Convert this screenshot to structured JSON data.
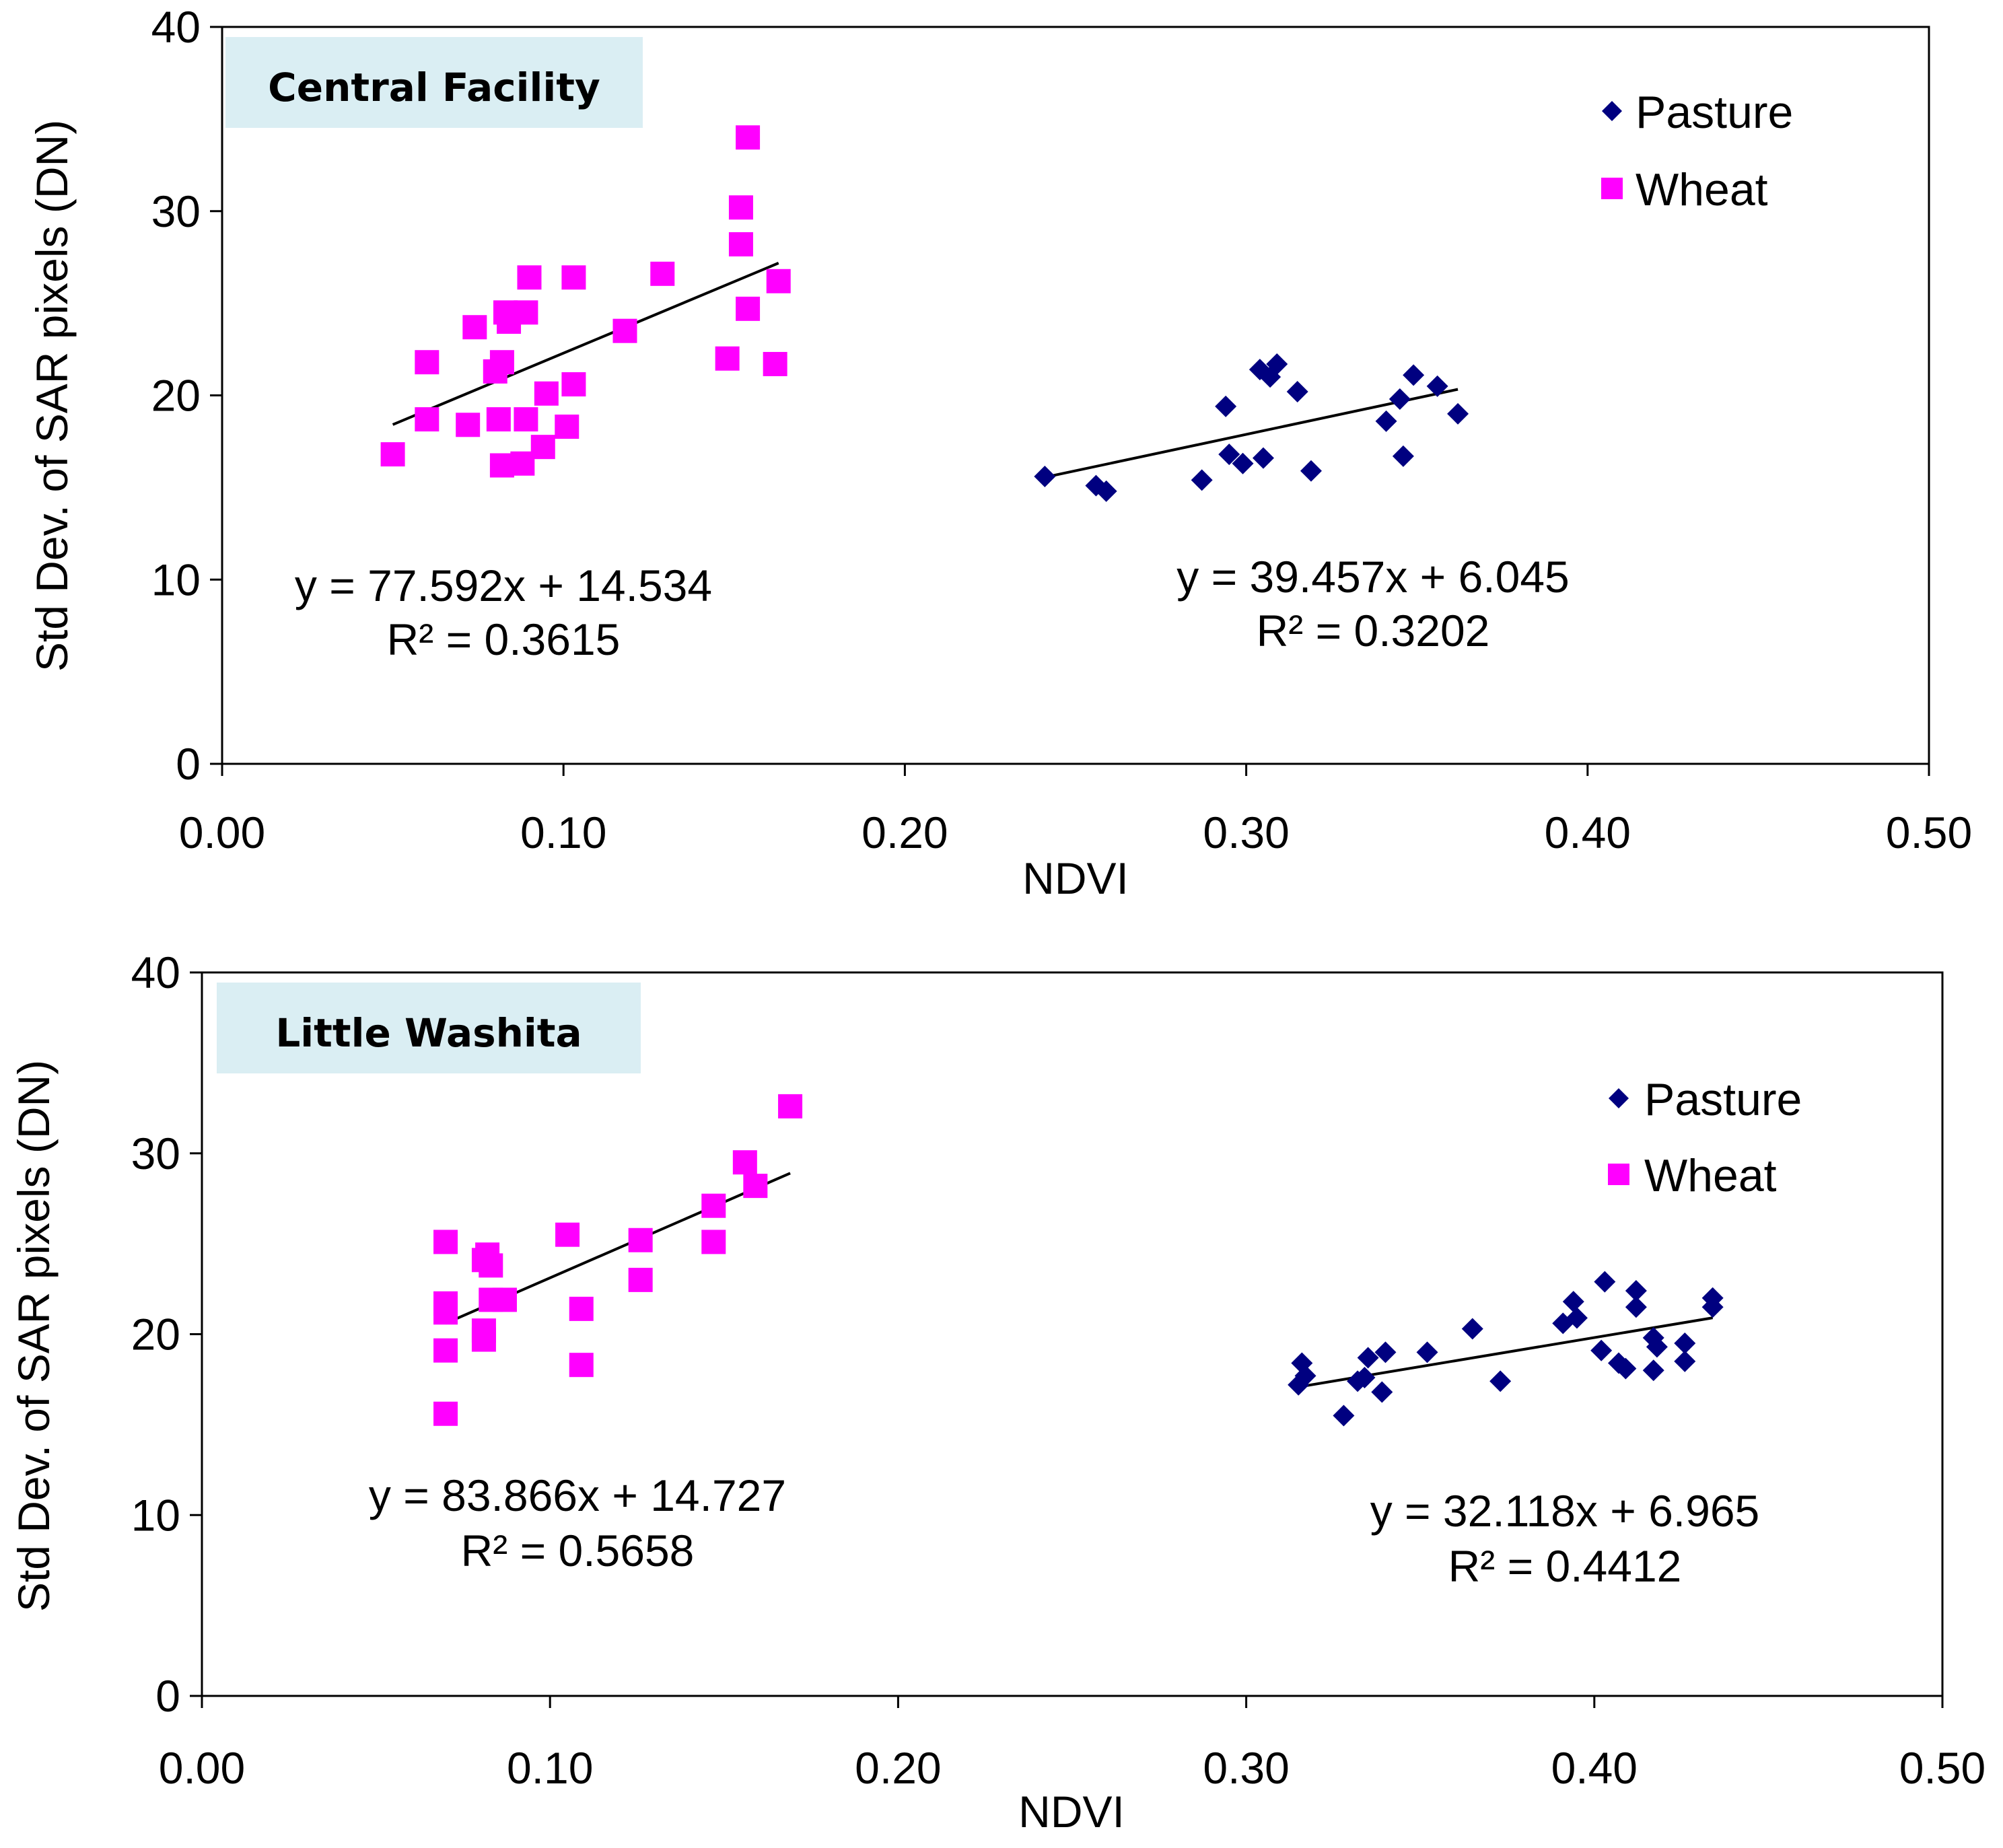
{
  "chart_data": [
    {
      "type": "scatter",
      "panel_title": "Central Facility",
      "xlabel": "NDVI",
      "ylabel": "Std Dev. of SAR pixels (DN)",
      "xlim": [
        0,
        0.5
      ],
      "ylim": [
        0,
        40
      ],
      "x_ticks": [
        "0.00",
        "0.10",
        "0.20",
        "0.30",
        "0.40",
        "0.50"
      ],
      "y_ticks": [
        "0",
        "10",
        "20",
        "30",
        "40"
      ],
      "legend_position": "top-right",
      "series": [
        {
          "name": "Pasture",
          "marker": "diamond",
          "color": "#000080",
          "points": [
            [
              0.241,
              15.6
            ],
            [
              0.256,
              15.1
            ],
            [
              0.259,
              14.8
            ],
            [
              0.287,
              15.4
            ],
            [
              0.294,
              19.4
            ],
            [
              0.295,
              16.8
            ],
            [
              0.299,
              16.3
            ],
            [
              0.304,
              21.4
            ],
            [
              0.305,
              16.6
            ],
            [
              0.307,
              21.0
            ],
            [
              0.309,
              21.7
            ],
            [
              0.315,
              20.2
            ],
            [
              0.319,
              15.9
            ],
            [
              0.341,
              18.6
            ],
            [
              0.345,
              19.8
            ],
            [
              0.346,
              16.7
            ],
            [
              0.349,
              21.1
            ],
            [
              0.356,
              20.5
            ],
            [
              0.362,
              19.0
            ]
          ],
          "trendline": {
            "equation": "y = 39.457x + 6.045",
            "r2": "R² = 0.3202",
            "slope": 39.457,
            "intercept": 6.045,
            "x_range": [
              0.241,
              0.362
            ]
          }
        },
        {
          "name": "Wheat",
          "marker": "square",
          "color": "#ff00ff",
          "points": [
            [
              0.05,
              16.8
            ],
            [
              0.06,
              21.8
            ],
            [
              0.06,
              18.7
            ],
            [
              0.072,
              18.4
            ],
            [
              0.074,
              23.7
            ],
            [
              0.08,
              21.3
            ],
            [
              0.081,
              18.7
            ],
            [
              0.082,
              16.2
            ],
            [
              0.082,
              21.8
            ],
            [
              0.083,
              24.5
            ],
            [
              0.084,
              24.0
            ],
            [
              0.088,
              16.3
            ],
            [
              0.089,
              24.5
            ],
            [
              0.089,
              18.7
            ],
            [
              0.09,
              26.4
            ],
            [
              0.094,
              17.2
            ],
            [
              0.095,
              20.1
            ],
            [
              0.101,
              18.3
            ],
            [
              0.103,
              20.6
            ],
            [
              0.103,
              26.4
            ],
            [
              0.118,
              23.5
            ],
            [
              0.129,
              26.6
            ],
            [
              0.148,
              22.0
            ],
            [
              0.152,
              28.2
            ],
            [
              0.152,
              30.2
            ],
            [
              0.154,
              34.0
            ],
            [
              0.154,
              24.7
            ],
            [
              0.162,
              21.7
            ],
            [
              0.163,
              26.2
            ]
          ],
          "trendline": {
            "equation": "y = 77.592x + 14.534",
            "r2": "R² = 0.3615",
            "slope": 77.592,
            "intercept": 14.534,
            "x_range": [
              0.05,
              0.163
            ]
          }
        }
      ]
    },
    {
      "type": "scatter",
      "panel_title": "Little Washita",
      "xlabel": "NDVI",
      "ylabel": "Std Dev. of SAR pixels (DN)",
      "xlim": [
        0,
        0.5
      ],
      "ylim": [
        0,
        40
      ],
      "x_ticks": [
        "0.00",
        "0.10",
        "0.20",
        "0.30",
        "0.40",
        "0.50"
      ],
      "y_ticks": [
        "0",
        "10",
        "20",
        "30",
        "40"
      ],
      "legend_position": "top-right",
      "series": [
        {
          "name": "Pasture",
          "marker": "diamond",
          "color": "#000080",
          "points": [
            [
              0.315,
              17.2
            ],
            [
              0.316,
              18.4
            ],
            [
              0.317,
              17.7
            ],
            [
              0.328,
              15.5
            ],
            [
              0.332,
              17.4
            ],
            [
              0.334,
              17.6
            ],
            [
              0.335,
              18.7
            ],
            [
              0.339,
              16.8
            ],
            [
              0.34,
              19.0
            ],
            [
              0.352,
              19.0
            ],
            [
              0.365,
              20.3
            ],
            [
              0.373,
              17.4
            ],
            [
              0.391,
              20.6
            ],
            [
              0.394,
              21.8
            ],
            [
              0.395,
              20.9
            ],
            [
              0.402,
              19.1
            ],
            [
              0.403,
              22.9
            ],
            [
              0.407,
              18.4
            ],
            [
              0.409,
              18.1
            ],
            [
              0.412,
              22.4
            ],
            [
              0.412,
              21.5
            ],
            [
              0.417,
              18.0
            ],
            [
              0.417,
              19.8
            ],
            [
              0.418,
              19.3
            ],
            [
              0.426,
              19.5
            ],
            [
              0.426,
              18.5
            ],
            [
              0.434,
              21.5
            ],
            [
              0.434,
              22.0
            ]
          ],
          "trendline": {
            "equation": "y = 32.118x + 6.965",
            "r2": "R² = 0.4412",
            "slope": 32.118,
            "intercept": 6.965,
            "x_range": [
              0.315,
              0.434
            ]
          }
        },
        {
          "name": "Wheat",
          "marker": "square",
          "color": "#ff00ff",
          "points": [
            [
              0.07,
              25.1
            ],
            [
              0.07,
              21.7
            ],
            [
              0.07,
              21.2
            ],
            [
              0.07,
              19.1
            ],
            [
              0.07,
              15.6
            ],
            [
              0.081,
              20.2
            ],
            [
              0.081,
              19.7
            ],
            [
              0.081,
              24.1
            ],
            [
              0.082,
              24.4
            ],
            [
              0.083,
              23.8
            ],
            [
              0.083,
              21.9
            ],
            [
              0.087,
              21.9
            ],
            [
              0.105,
              25.5
            ],
            [
              0.109,
              21.4
            ],
            [
              0.109,
              18.3
            ],
            [
              0.126,
              25.2
            ],
            [
              0.126,
              23.0
            ],
            [
              0.147,
              27.1
            ],
            [
              0.147,
              25.1
            ],
            [
              0.156,
              29.5
            ],
            [
              0.159,
              28.2
            ],
            [
              0.169,
              32.6
            ]
          ],
          "trendline": {
            "equation": "y = 83.866x + 14.727",
            "r2": "R² = 0.5658",
            "slope": 83.866,
            "intercept": 14.727,
            "x_range": [
              0.07,
              0.169
            ]
          }
        }
      ]
    }
  ]
}
